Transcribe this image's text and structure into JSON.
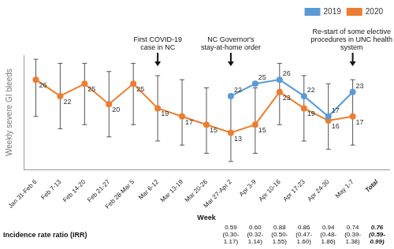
{
  "chart_data": {
    "type": "line",
    "y_label": "Weekly severe GI bleeds",
    "x_label": "Week",
    "categories": [
      "Jan 31-Feb 6",
      "Feb 7-13",
      "Feb 14-20",
      "Feb 21-27",
      "Feb 28-Mar 5",
      "Mar 6-12",
      "Mar 13-19",
      "Mar 20-26",
      "Mar 27-Apr 2",
      "Apr 3-9",
      "Apr 10-16",
      "Apr 17-23",
      "Apr 24-30",
      "May 1-7",
      "Total"
    ],
    "series": [
      {
        "name": "2019",
        "color": "#5b9bd5",
        "marker": "circle",
        "values": [
          null,
          null,
          null,
          null,
          null,
          null,
          null,
          null,
          22,
          25,
          26,
          22,
          17,
          23,
          null
        ]
      },
      {
        "name": "2020",
        "color": "#ed7d31",
        "marker": "circle",
        "values": [
          26,
          22,
          25,
          20,
          25,
          19,
          17,
          15,
          13,
          15,
          23,
          19,
          16,
          17,
          null
        ],
        "error_bars": [
          [
            17,
            31
          ],
          [
            14,
            30
          ],
          [
            15,
            30
          ],
          [
            12,
            28
          ],
          [
            15,
            30
          ],
          [
            11,
            27
          ],
          [
            10,
            26
          ],
          [
            8,
            24
          ],
          [
            6,
            22
          ],
          [
            8,
            24
          ],
          [
            15,
            30
          ],
          [
            11,
            27
          ],
          [
            9,
            25
          ],
          [
            10,
            26
          ],
          null
        ]
      }
    ],
    "ylim": [
      4,
      32
    ],
    "tick_labels": "x",
    "grid": false,
    "legend": "top",
    "data_labels": true,
    "annotations": [
      {
        "category": "Mar 6-12",
        "lines": [
          "First COVID-19",
          "case in NC"
        ]
      },
      {
        "category": "Mar 27-Apr 2",
        "lines": [
          "NC Governor's",
          "stay-at-home order"
        ]
      },
      {
        "category": "May 1-7",
        "lines": [
          "Re-start of some elective",
          "procedures in UNC health",
          "system"
        ]
      }
    ],
    "table": {
      "row_label": "Incidence rate ratio (IRR)",
      "values": [
        null,
        null,
        null,
        null,
        null,
        null,
        null,
        null,
        "0.59 (0.30-1.17)",
        "0.60 (0.32-1.14)",
        "0.88 (0.50-1.55)",
        "0.86 (0.47-1.60)",
        "0.94 (0.48-1.86)",
        "0.74 (0.39-1.38)",
        "0.76 (0.59-0.99)"
      ]
    }
  }
}
